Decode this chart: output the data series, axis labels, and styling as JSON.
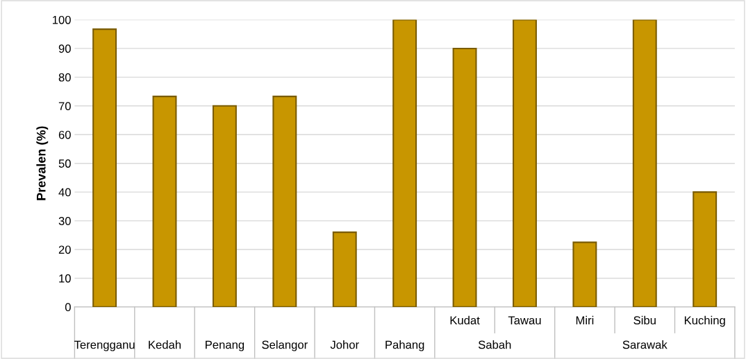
{
  "chart_data": {
    "type": "bar",
    "ylabel": "Prevalen (%)",
    "categories": [
      "Terengganu",
      "Kedah",
      "Penang",
      "Selangor",
      "Johor",
      "Pahang",
      "Kudat",
      "Tawau",
      "Miri",
      "Sibu",
      "Kuching"
    ],
    "values": [
      96.7,
      73.3,
      70,
      73.3,
      26,
      100,
      90,
      100,
      22.5,
      100,
      40
    ],
    "color": "#c89600",
    "ylim": [
      0,
      100
    ],
    "yticks": [
      0,
      10,
      20,
      30,
      40,
      50,
      60,
      70,
      80,
      90,
      100
    ],
    "grid": "y",
    "annotations": [
      "Sabah",
      "Sarawak"
    ]
  }
}
